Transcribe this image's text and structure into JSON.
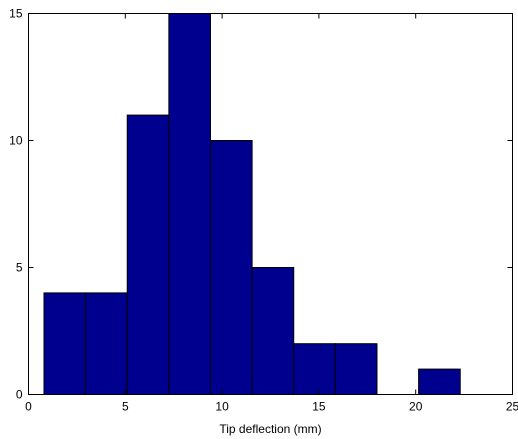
{
  "chart_data": {
    "type": "bar",
    "title": "",
    "xlabel": "Tip deflection (mm)",
    "ylabel": "",
    "xlim": [
      0,
      25
    ],
    "ylim": [
      0,
      15
    ],
    "xticks": [
      0,
      5,
      10,
      15,
      20,
      25
    ],
    "yticks": [
      0,
      5,
      10,
      15
    ],
    "grid": false,
    "bars": [
      {
        "x0": 0.8,
        "x1": 2.95,
        "value": 4
      },
      {
        "x0": 2.95,
        "x1": 5.1,
        "value": 4
      },
      {
        "x0": 5.1,
        "x1": 7.25,
        "value": 11
      },
      {
        "x0": 7.25,
        "x1": 9.4,
        "value": 15
      },
      {
        "x0": 9.4,
        "x1": 11.55,
        "value": 10
      },
      {
        "x0": 11.55,
        "x1": 13.7,
        "value": 5
      },
      {
        "x0": 13.7,
        "x1": 15.85,
        "value": 2
      },
      {
        "x0": 15.85,
        "x1": 18.0,
        "value": 2
      },
      {
        "x0": 18.0,
        "x1": 20.15,
        "value": 0
      },
      {
        "x0": 20.15,
        "x1": 22.3,
        "value": 1
      }
    ],
    "bar_color": "#00008f",
    "edge_color": "#000000"
  }
}
